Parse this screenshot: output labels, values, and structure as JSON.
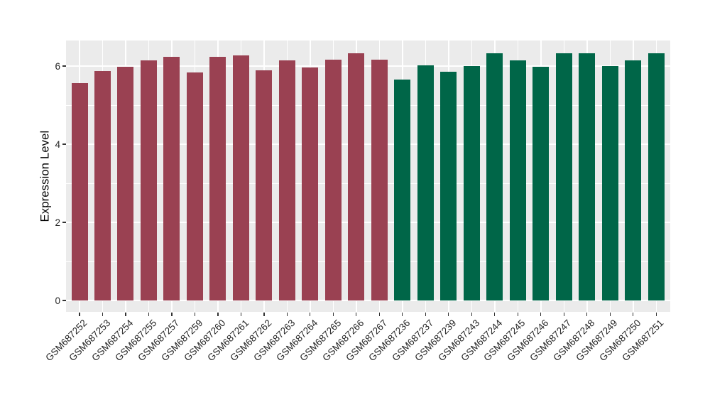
{
  "chart_data": {
    "type": "bar",
    "title": "",
    "xlabel": "",
    "ylabel": "Expression Level",
    "ytick_labels": [
      "0",
      "2",
      "4",
      "6"
    ],
    "ytick_values": [
      0,
      2,
      4,
      6
    ],
    "ylim": [
      -0.31,
      6.65
    ],
    "grid": "white major gridlines at y=0,2,4,6; white minor gridlines at y=1,3,5; white vertical gridlines at each bar center; gray panel background",
    "legend_position": "none",
    "categories": [
      "GSM687252",
      "GSM687253",
      "GSM687254",
      "GSM687255",
      "GSM687257",
      "GSM687259",
      "GSM687260",
      "GSM687261",
      "GSM687262",
      "GSM687263",
      "GSM687264",
      "GSM687265",
      "GSM687266",
      "GSM687267",
      "GSM687236",
      "GSM687237",
      "GSM687239",
      "GSM687243",
      "GSM687244",
      "GSM687245",
      "GSM687246",
      "GSM687247",
      "GSM687248",
      "GSM687249",
      "GSM687250",
      "GSM687251"
    ],
    "values": [
      5.57,
      5.87,
      5.98,
      6.15,
      6.24,
      5.84,
      6.24,
      6.27,
      5.89,
      6.15,
      5.96,
      6.17,
      6.32,
      6.16,
      5.65,
      6.01,
      5.86,
      6.0,
      6.32,
      6.15,
      5.99,
      6.33,
      6.33,
      6.0,
      6.15,
      6.33
    ],
    "bar_group_index": [
      0,
      0,
      0,
      0,
      0,
      0,
      0,
      0,
      0,
      0,
      0,
      0,
      0,
      0,
      1,
      1,
      1,
      1,
      1,
      1,
      1,
      1,
      1,
      1,
      1,
      1
    ],
    "series": [
      {
        "name": "maroon-group",
        "color": "#9A4152",
        "n_bars": 14
      },
      {
        "name": "green-group",
        "color": "#006648",
        "n_bars": 12
      }
    ]
  },
  "styles": {
    "panel_background": "#EBEBEB",
    "gridline_color": "#FFFFFF",
    "tick_mark_color": "#333333",
    "tick_label_color": "#262626",
    "axis_title_color": "#000000",
    "figure_background": "#FFFFFF"
  }
}
